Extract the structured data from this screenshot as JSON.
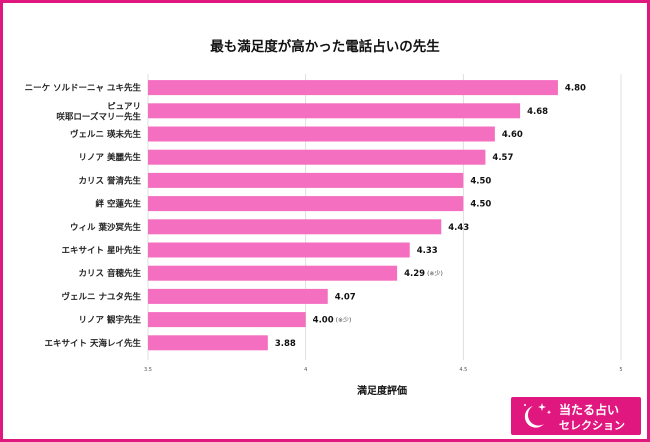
{
  "chart_data": {
    "type": "bar",
    "orientation": "horizontal",
    "title": "最も満足度が高かった電話占いの先生",
    "xlabel": "満足度評価",
    "ylabel": "",
    "xlim": [
      3.5,
      5
    ],
    "ticks": [
      "3.5",
      "4",
      "4.5",
      "5"
    ],
    "grid": true,
    "bar_color": "#f46fbf",
    "categories": [
      "ニーケ ソルドーニャ ユキ先生",
      "ピュアリ\n咲耶ローズマリー先生",
      "ヴェルニ 瑛未先生",
      "リノア 美麗先生",
      "カリス 誉清先生",
      "絆 空蓮先生",
      "ウィル 葉沙冥先生",
      "エキサイト 星叶先生",
      "カリス 音穂先生",
      "ヴェルニ ナユタ先生",
      "リノア 観宇先生",
      "エキサイト 天海レイ先生"
    ],
    "values": [
      4.8,
      4.68,
      4.6,
      4.57,
      4.5,
      4.5,
      4.43,
      4.33,
      4.29,
      4.07,
      4.0,
      3.88
    ],
    "value_labels": [
      "4.80",
      "4.68",
      "4.60",
      "4.57",
      "4.50",
      "4.50",
      "4.43",
      "4.33",
      "4.29",
      "4.07",
      "4.00",
      "3.88"
    ],
    "notes": [
      "",
      "",
      "",
      "",
      "",
      "",
      "",
      "",
      "(※少)",
      "",
      "(※少)",
      ""
    ]
  },
  "logo": {
    "line1": "当たる占い",
    "line2": "セレクション"
  },
  "colors": {
    "accent": "#e0177f",
    "bar": "#f46fbf"
  }
}
